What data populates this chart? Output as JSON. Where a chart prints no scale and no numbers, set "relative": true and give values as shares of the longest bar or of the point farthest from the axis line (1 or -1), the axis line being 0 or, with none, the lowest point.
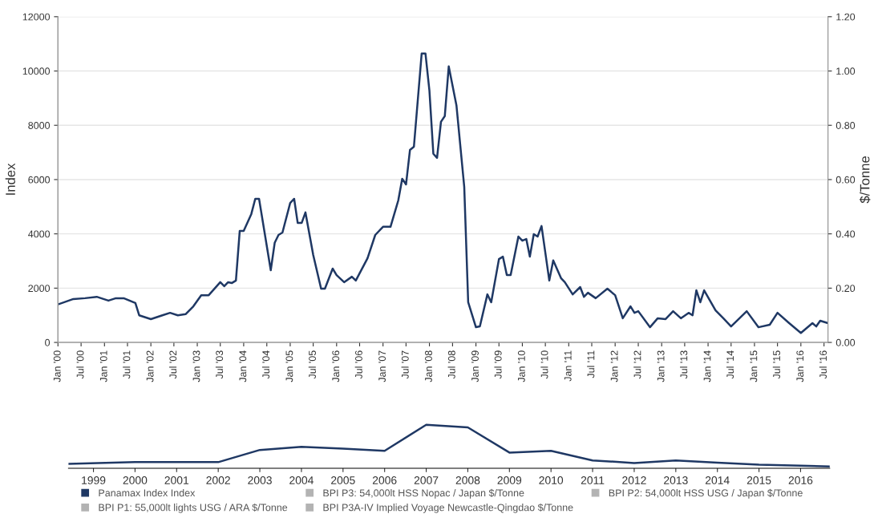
{
  "chart_data": [
    {
      "type": "line",
      "ylabel": "Index",
      "y2label": "$/Tonne",
      "x": [
        "2000-01",
        "2000-05",
        "2000-08",
        "2000-11",
        "2001-02",
        "2001-04",
        "2001-06",
        "2001-09",
        "2001-10",
        "2002-01",
        "2002-04",
        "2002-06",
        "2002-08",
        "2002-10",
        "2002-12",
        "2003-02",
        "2003-04",
        "2003-07",
        "2003-08",
        "2003-09",
        "2003-10",
        "2003-11",
        "2003-12",
        "2004-01",
        "2004-03",
        "2004-04",
        "2004-05",
        "2004-08",
        "2004-09",
        "2004-10",
        "2004-11",
        "2005-01",
        "2005-02",
        "2005-03",
        "2005-04",
        "2005-05",
        "2005-07",
        "2005-09",
        "2005-10",
        "2005-12",
        "2006-01",
        "2006-03",
        "2006-05",
        "2006-06",
        "2006-09",
        "2006-11",
        "2007-01",
        "2007-03",
        "2007-05",
        "2007-06",
        "2007-07",
        "2007-08",
        "2007-09",
        "2007-11",
        "2007-12",
        "2008-01",
        "2008-02",
        "2008-03",
        "2008-04",
        "2008-05",
        "2008-06",
        "2008-08",
        "2008-10",
        "2008-11",
        "2009-01",
        "2009-02",
        "2009-04",
        "2009-05",
        "2009-07",
        "2009-08",
        "2009-09",
        "2009-10",
        "2009-12",
        "2010-01",
        "2010-02",
        "2010-03",
        "2010-04",
        "2010-05",
        "2010-06",
        "2010-08",
        "2010-09",
        "2010-11",
        "2010-12",
        "2011-02",
        "2011-04",
        "2011-05",
        "2011-06",
        "2011-08",
        "2011-11",
        "2012-01",
        "2012-03",
        "2012-05",
        "2012-06",
        "2012-07",
        "2012-10",
        "2012-12",
        "2013-02",
        "2013-04",
        "2013-06",
        "2013-08",
        "2013-09",
        "2013-10",
        "2013-11",
        "2013-12",
        "2014-03",
        "2014-05",
        "2014-07",
        "2014-11",
        "2015-02",
        "2015-05",
        "2015-07",
        "2015-10",
        "2016-01",
        "2016-04",
        "2016-05",
        "2016-06",
        "2016-08"
      ],
      "series": [
        {
          "name": "Panamax Index Index",
          "color": "#1f3864",
          "values": [
            1400,
            1600,
            1630,
            1680,
            1540,
            1630,
            1630,
            1450,
            1000,
            860,
            1000,
            1090,
            1000,
            1040,
            1330,
            1740,
            1740,
            2220,
            2070,
            2220,
            2190,
            2280,
            4110,
            4110,
            4730,
            5290,
            5290,
            2660,
            3670,
            3960,
            4050,
            5140,
            5290,
            4400,
            4400,
            4790,
            3220,
            1980,
            1980,
            2720,
            2480,
            2220,
            2420,
            2280,
            3100,
            3960,
            4260,
            4260,
            5230,
            6030,
            5820,
            7090,
            7210,
            10640,
            10640,
            9280,
            6950,
            6800,
            8130,
            8340,
            10170,
            8720,
            5730,
            1480,
            560,
            590,
            1770,
            1480,
            3070,
            3160,
            2480,
            2480,
            3900,
            3750,
            3810,
            3160,
            3990,
            3900,
            4290,
            2280,
            3020,
            2370,
            2220,
            1770,
            2040,
            1680,
            1830,
            1630,
            1980,
            1740,
            890,
            1330,
            1090,
            1150,
            560,
            890,
            860,
            1150,
            890,
            1090,
            1000,
            1920,
            1480,
            1920,
            1180,
            890,
            590,
            1150,
            560,
            650,
            1090,
            710,
            350,
            710,
            590,
            800,
            710
          ]
        },
        {
          "name": "BPI P3: 54,000lt HSS Nopac / Japan $/Tonne",
          "color": "#b3b3b3",
          "values": [
            null,
            null,
            null,
            null,
            null,
            null,
            null,
            null,
            null,
            null,
            null,
            null,
            null,
            null,
            null,
            null,
            null,
            null,
            null,
            null,
            null,
            null,
            null,
            null,
            null,
            null,
            null,
            null,
            null,
            null,
            null,
            null,
            null,
            null,
            null,
            null,
            null,
            null,
            null,
            null,
            null,
            null,
            null,
            null,
            null,
            null,
            null,
            null,
            null,
            null,
            null,
            null,
            null,
            null,
            null,
            null,
            null,
            null,
            null,
            null,
            null,
            null,
            null,
            null,
            null,
            null,
            null,
            null,
            null,
            null,
            null,
            null,
            null,
            null,
            null,
            null,
            null,
            null,
            null,
            null,
            null,
            null,
            null,
            null,
            null,
            null,
            null,
            null,
            null,
            null,
            null,
            null,
            null,
            null,
            null,
            null,
            null,
            null,
            null,
            null,
            null,
            null,
            null,
            null,
            null,
            null,
            null,
            null,
            null,
            null,
            null,
            null,
            null,
            null,
            null,
            null,
            null
          ]
        },
        {
          "name": "BPI P2: 54,000lt HSS USG / Japan $/Tonne",
          "color": "#b3b3b3",
          "values": [
            null,
            null,
            null,
            null,
            null,
            null,
            null,
            null,
            null,
            null,
            null,
            null,
            null,
            null,
            null,
            null,
            null,
            null,
            null,
            null,
            null,
            null,
            null,
            null,
            null,
            null,
            null,
            null,
            null,
            null,
            null,
            null,
            null,
            null,
            null,
            null,
            null,
            null,
            null,
            null,
            null,
            null,
            null,
            null,
            null,
            null,
            null,
            null,
            null,
            null,
            null,
            null,
            null,
            null,
            null,
            null,
            null,
            null,
            null,
            null,
            null,
            null,
            null,
            null,
            null,
            null,
            null,
            null,
            null,
            null,
            null,
            null,
            null,
            null,
            null,
            null,
            null,
            null,
            null,
            null,
            null,
            null,
            null,
            null,
            null,
            null,
            null,
            null,
            null,
            null,
            null,
            null,
            null,
            null,
            null,
            null,
            null,
            null,
            null,
            null,
            null,
            null,
            null,
            null,
            null,
            null,
            null,
            null,
            null,
            null,
            null,
            null,
            null,
            null,
            null,
            null,
            null
          ]
        },
        {
          "name": "BPI P1: 55,000lt lights USG / ARA $/Tonne",
          "color": "#b3b3b3",
          "values": [
            null,
            null,
            null,
            null,
            null,
            null,
            null,
            null,
            null,
            null,
            null,
            null,
            null,
            null,
            null,
            null,
            null,
            null,
            null,
            null,
            null,
            null,
            null,
            null,
            null,
            null,
            null,
            null,
            null,
            null,
            null,
            null,
            null,
            null,
            null,
            null,
            null,
            null,
            null,
            null,
            null,
            null,
            null,
            null,
            null,
            null,
            null,
            null,
            null,
            null,
            null,
            null,
            null,
            null,
            null,
            null,
            null,
            null,
            null,
            null,
            null,
            null,
            null,
            null,
            null,
            null,
            null,
            null,
            null,
            null,
            null,
            null,
            null,
            null,
            null,
            null,
            null,
            null,
            null,
            null,
            null,
            null,
            null,
            null,
            null,
            null,
            null,
            null,
            null,
            null,
            null,
            null,
            null,
            null,
            null,
            null,
            null,
            null,
            null,
            null,
            null,
            null,
            null,
            null,
            null,
            null,
            null,
            null,
            null,
            null,
            null,
            null,
            null,
            null,
            null,
            null,
            null
          ]
        },
        {
          "name": "BPI P3A-IV Implied Voyage Newcastle-Qingdao $/Tonne",
          "color": "#b3b3b3",
          "values": [
            null,
            null,
            null,
            null,
            null,
            null,
            null,
            null,
            null,
            null,
            null,
            null,
            null,
            null,
            null,
            null,
            null,
            null,
            null,
            null,
            null,
            null,
            null,
            null,
            null,
            null,
            null,
            null,
            null,
            null,
            null,
            null,
            null,
            null,
            null,
            null,
            null,
            null,
            null,
            null,
            null,
            null,
            null,
            null,
            null,
            null,
            null,
            null,
            null,
            null,
            null,
            null,
            null,
            null,
            null,
            null,
            null,
            null,
            null,
            null,
            null,
            null,
            null,
            null,
            null,
            null,
            null,
            null,
            null,
            null,
            null,
            null,
            null,
            null,
            null,
            null,
            null,
            null,
            null,
            null,
            null,
            null,
            null,
            null,
            null,
            null,
            null,
            null,
            null,
            null,
            null,
            null,
            null,
            null,
            null,
            null,
            null,
            null,
            null,
            null,
            null,
            null,
            null,
            null,
            null,
            null,
            null,
            null,
            null,
            null,
            null,
            null,
            null,
            null,
            null,
            null,
            null
          ]
        }
      ],
      "xlim": [
        "2000-01",
        "2016-08"
      ],
      "xticks": [
        {
          "value": "2000-01",
          "label": "Jan '00"
        },
        {
          "value": "2000-07",
          "label": "Jul '00"
        },
        {
          "value": "2001-01",
          "label": "Jan '01"
        },
        {
          "value": "2001-07",
          "label": "Jul '01"
        },
        {
          "value": "2002-01",
          "label": "Jan '02"
        },
        {
          "value": "2002-07",
          "label": "Jul '02"
        },
        {
          "value": "2003-01",
          "label": "Jan '03"
        },
        {
          "value": "2003-07",
          "label": "Jul '03"
        },
        {
          "value": "2004-01",
          "label": "Jan '04"
        },
        {
          "value": "2004-07",
          "label": "Jul '04"
        },
        {
          "value": "2005-01",
          "label": "Jan '05"
        },
        {
          "value": "2005-07",
          "label": "Jul '05"
        },
        {
          "value": "2006-01",
          "label": "Jan '06"
        },
        {
          "value": "2006-07",
          "label": "Jul '06"
        },
        {
          "value": "2007-01",
          "label": "Jan '07"
        },
        {
          "value": "2007-07",
          "label": "Jul '07"
        },
        {
          "value": "2008-01",
          "label": "Jan '08"
        },
        {
          "value": "2008-07",
          "label": "Jul '08"
        },
        {
          "value": "2009-01",
          "label": "Jan '09"
        },
        {
          "value": "2009-07",
          "label": "Jul '09"
        },
        {
          "value": "2010-01",
          "label": "Jan '10"
        },
        {
          "value": "2010-07",
          "label": "Jul '10"
        },
        {
          "value": "2011-01",
          "label": "Jan '11"
        },
        {
          "value": "2011-07",
          "label": "Jul '11"
        },
        {
          "value": "2012-01",
          "label": "Jan '12"
        },
        {
          "value": "2012-07",
          "label": "Jul '12"
        },
        {
          "value": "2013-01",
          "label": "Jan '13"
        },
        {
          "value": "2013-07",
          "label": "Jul '13"
        },
        {
          "value": "2014-01",
          "label": "Jan '14"
        },
        {
          "value": "2014-07",
          "label": "Jul '14"
        },
        {
          "value": "2015-01",
          "label": "Jan '15"
        },
        {
          "value": "2015-07",
          "label": "Jul '15"
        },
        {
          "value": "2016-01",
          "label": "Jan '16"
        },
        {
          "value": "2016-07",
          "label": "Jul '16"
        }
      ],
      "ylim": [
        0,
        12000
      ],
      "yticks": [
        0,
        2000,
        4000,
        6000,
        8000,
        10000,
        12000
      ],
      "y2lim": [
        0,
        1.2
      ],
      "y2ticks": [
        {
          "value": 0,
          "label": "0.00"
        },
        {
          "value": 0.2,
          "label": "0.20"
        },
        {
          "value": 0.4,
          "label": "0.40"
        },
        {
          "value": 0.6,
          "label": "0.60"
        },
        {
          "value": 0.8,
          "label": "0.80"
        },
        {
          "value": 1.0,
          "label": "1.00"
        },
        {
          "value": 1.2,
          "label": "1.20"
        }
      ],
      "grid": "y",
      "legend": "bottom",
      "marker": "none",
      "line_style": "solid"
    },
    {
      "type": "line",
      "relative": true,
      "x": [
        1998.4,
        2000,
        2001,
        2002,
        2003,
        2004,
        2005,
        2006,
        2007,
        2008,
        2009,
        2010,
        2011,
        2012,
        2013,
        2014,
        2015,
        2016,
        2016.7
      ],
      "series": [
        {
          "color": "#1f3864",
          "values": [
            0.1,
            0.14,
            0.14,
            0.14,
            0.42,
            0.49,
            0.45,
            0.4,
            1,
            0.94,
            0.36,
            0.4,
            0.18,
            0.12,
            0.18,
            0.13,
            0.08,
            0.06,
            0.04
          ]
        }
      ],
      "xlim": [
        1998.4,
        2016.7
      ],
      "xticks": [
        1999,
        2000,
        2001,
        2002,
        2003,
        2004,
        2005,
        2006,
        2007,
        2008,
        2009,
        2010,
        2011,
        2012,
        2013,
        2014,
        2015,
        2016
      ],
      "grid": false,
      "legend": false,
      "marker": "none",
      "line_style": "solid"
    }
  ]
}
